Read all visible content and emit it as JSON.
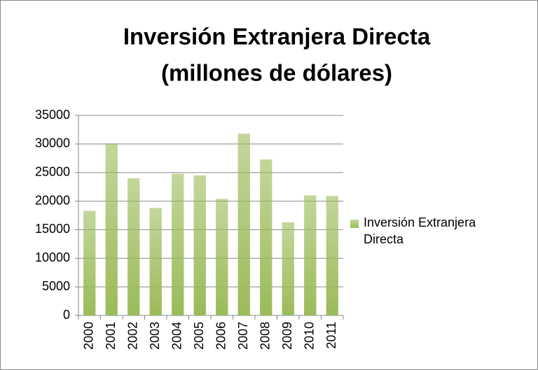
{
  "chart_data": {
    "type": "bar",
    "title": [
      "Inversión Extranjera  Directa",
      "(millones de dólares)"
    ],
    "categories": [
      "2000",
      "2001",
      "2002",
      "2003",
      "2004",
      "2005",
      "2006",
      "2007",
      "2008",
      "2009",
      "2010",
      "2011"
    ],
    "series": [
      {
        "name": "Inversión Extranjera Directa",
        "color": "#9bbb59",
        "values": [
          18300,
          30100,
          24000,
          18800,
          24800,
          24500,
          20400,
          31800,
          27300,
          16300,
          21000,
          20900
        ]
      }
    ],
    "ylim": [
      0,
      35000
    ],
    "yticks": [
      0,
      5000,
      10000,
      15000,
      20000,
      25000,
      30000,
      35000
    ],
    "grid": true,
    "legend": "right"
  }
}
